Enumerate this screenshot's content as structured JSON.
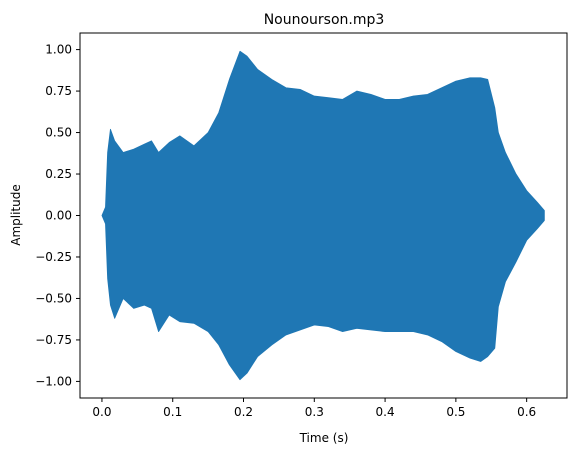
{
  "chart_data": {
    "type": "area",
    "title": "Nounourson.mp3",
    "xlabel": "Time (s)",
    "ylabel": "Amplitude",
    "xlim": [
      -0.031,
      0.657
    ],
    "ylim": [
      -1.1,
      1.1
    ],
    "x_ticks": [
      0.0,
      0.1,
      0.2,
      0.3,
      0.4,
      0.5,
      0.6
    ],
    "x_tick_labels": [
      "0.0",
      "0.1",
      "0.2",
      "0.3",
      "0.4",
      "0.5",
      "0.6"
    ],
    "y_ticks": [
      1.0,
      0.75,
      0.5,
      0.25,
      0.0,
      -0.25,
      -0.5,
      -0.75,
      -1.0
    ],
    "y_tick_labels": [
      "1.00",
      "0.75",
      "0.50",
      "0.25",
      "0.00",
      "−0.25",
      "−0.50",
      "−0.75",
      "−1.00"
    ],
    "grid": false,
    "series_color": "#1f77b4",
    "series": [
      {
        "x": [
          0.0,
          0.005,
          0.008,
          0.012,
          0.018,
          0.03,
          0.045,
          0.06,
          0.07,
          0.08,
          0.095,
          0.11,
          0.13,
          0.15,
          0.165,
          0.18,
          0.195,
          0.205,
          0.22,
          0.24,
          0.26,
          0.28,
          0.3,
          0.32,
          0.34,
          0.36,
          0.38,
          0.4,
          0.42,
          0.44,
          0.46,
          0.48,
          0.5,
          0.52,
          0.535,
          0.545,
          0.555,
          0.56,
          0.57,
          0.585,
          0.6,
          0.615,
          0.625
        ],
        "upper": [
          0.0,
          0.05,
          0.38,
          0.52,
          0.45,
          0.38,
          0.4,
          0.43,
          0.45,
          0.38,
          0.44,
          0.48,
          0.42,
          0.5,
          0.62,
          0.82,
          0.99,
          0.96,
          0.88,
          0.82,
          0.77,
          0.76,
          0.72,
          0.71,
          0.7,
          0.75,
          0.73,
          0.7,
          0.7,
          0.72,
          0.73,
          0.77,
          0.81,
          0.83,
          0.83,
          0.82,
          0.65,
          0.5,
          0.38,
          0.25,
          0.15,
          0.08,
          0.03
        ],
        "lower": [
          0.0,
          -0.05,
          -0.38,
          -0.54,
          -0.62,
          -0.5,
          -0.56,
          -0.54,
          -0.56,
          -0.7,
          -0.6,
          -0.64,
          -0.65,
          -0.7,
          -0.78,
          -0.9,
          -0.99,
          -0.95,
          -0.85,
          -0.78,
          -0.72,
          -0.69,
          -0.66,
          -0.67,
          -0.7,
          -0.68,
          -0.69,
          -0.7,
          -0.7,
          -0.7,
          -0.72,
          -0.76,
          -0.82,
          -0.86,
          -0.88,
          -0.85,
          -0.8,
          -0.55,
          -0.4,
          -0.28,
          -0.15,
          -0.08,
          -0.03
        ]
      }
    ]
  }
}
